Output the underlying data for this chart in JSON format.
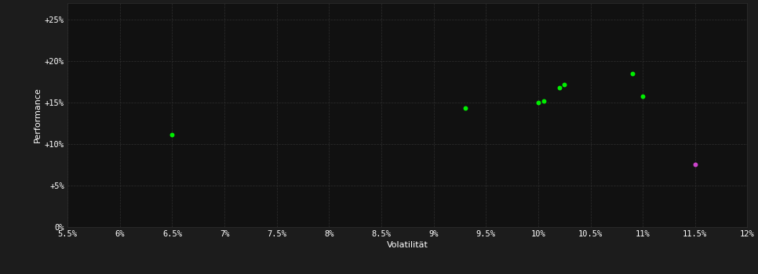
{
  "background_color": "#1c1c1c",
  "plot_bg_color": "#111111",
  "grid_color": "#2e2e2e",
  "text_color": "#ffffff",
  "xlabel": "Volatilität",
  "ylabel": "Performance",
  "xlim": [
    0.055,
    0.12
  ],
  "ylim": [
    0.0,
    0.27
  ],
  "xticks": [
    0.055,
    0.06,
    0.065,
    0.07,
    0.075,
    0.08,
    0.085,
    0.09,
    0.095,
    0.1,
    0.105,
    0.11,
    0.115,
    0.12
  ],
  "yticks": [
    0.0,
    0.05,
    0.1,
    0.15,
    0.2,
    0.25
  ],
  "ytick_labels": [
    "0%",
    "+5%",
    "+10%",
    "+15%",
    "+20%",
    "+25%"
  ],
  "xtick_labels": [
    "5.5%",
    "6%",
    "6.5%",
    "7%",
    "7.5%",
    "8%",
    "8.5%",
    "9%",
    "9.5%",
    "10%",
    "10.5%",
    "11%",
    "11.5%",
    "12%"
  ],
  "green_points": [
    [
      0.065,
      0.111
    ],
    [
      0.093,
      0.143
    ],
    [
      0.1,
      0.15
    ],
    [
      0.1005,
      0.152
    ],
    [
      0.102,
      0.168
    ],
    [
      0.1025,
      0.172
    ],
    [
      0.109,
      0.185
    ],
    [
      0.11,
      0.158
    ]
  ],
  "magenta_points": [
    [
      0.115,
      0.075
    ]
  ],
  "green_color": "#00ee00",
  "magenta_color": "#cc44cc",
  "marker_size": 18,
  "font_size_axis_label": 8,
  "font_size_tick": 7.5
}
